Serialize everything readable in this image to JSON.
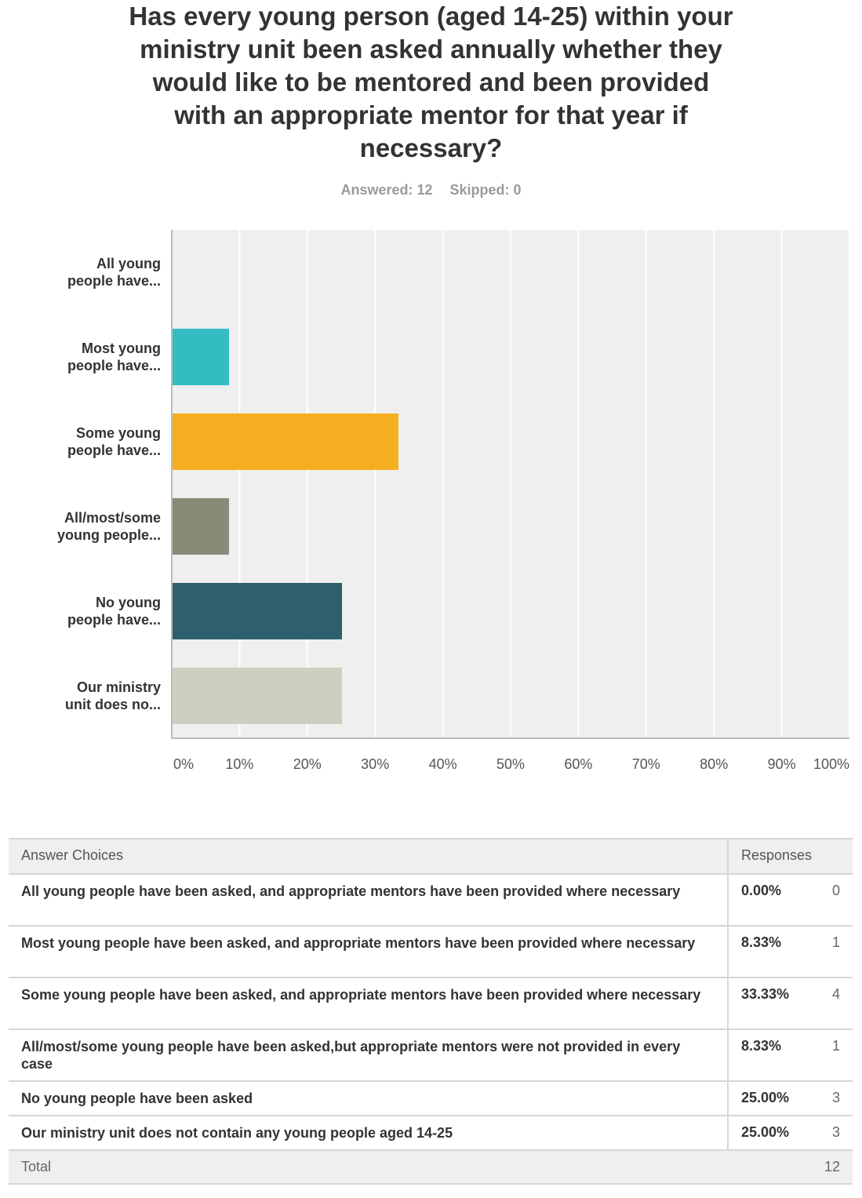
{
  "chart_data": {
    "type": "bar",
    "orientation": "horizontal",
    "title": "Has every young person (aged 14-25) within your ministry unit been asked annually whether they would like to be mentored and been provided with an appropriate mentor for that year if necessary?",
    "answered": "Answered: 12",
    "skipped": "Skipped: 0",
    "categories": [
      "All young\npeople have...",
      "Most young\npeople have...",
      "Some young\npeople have...",
      "All/most/some\nyoung people...",
      "No young\npeople have...",
      "Our ministry\nunit does no..."
    ],
    "values": [
      0,
      8.33,
      33.33,
      8.33,
      25,
      25
    ],
    "colors": [
      "#7c9ec8",
      "#33bdc2",
      "#f6ae21",
      "#898a78",
      "#2e5f6d",
      "#cfcfc1"
    ],
    "xlim": [
      0,
      100
    ],
    "xticks": [
      {
        "value": 0,
        "label": "0%"
      },
      {
        "value": 10,
        "label": "10%"
      },
      {
        "value": 20,
        "label": "20%"
      },
      {
        "value": 30,
        "label": "30%"
      },
      {
        "value": 40,
        "label": "40%"
      },
      {
        "value": 50,
        "label": "50%"
      },
      {
        "value": 60,
        "label": "60%"
      },
      {
        "value": 70,
        "label": "70%"
      },
      {
        "value": 80,
        "label": "80%"
      },
      {
        "value": 90,
        "label": "90%"
      },
      {
        "value": 100,
        "label": "100%"
      }
    ],
    "grid": true
  },
  "table": {
    "header": [
      "Answer Choices",
      "Responses"
    ],
    "rows": [
      [
        "All young people have been asked, and appropriate mentors have been provided where necessary",
        "0.00%",
        0
      ],
      [
        "Most young people have been asked, and appropriate mentors have been provided where necessary",
        "8.33%",
        1
      ],
      [
        "Some young people have been asked, and appropriate mentors have been provided where necessary",
        "33.33%",
        4
      ],
      [
        "All/most/some young people have been asked,but appropriate mentors were not provided in every case",
        "8.33%",
        1
      ],
      [
        "No young people have been asked",
        "25.00%",
        3
      ],
      [
        "Our ministry unit does not contain any young people aged 14-25",
        "25.00%",
        3
      ]
    ],
    "total": [
      "Total",
      12
    ]
  }
}
